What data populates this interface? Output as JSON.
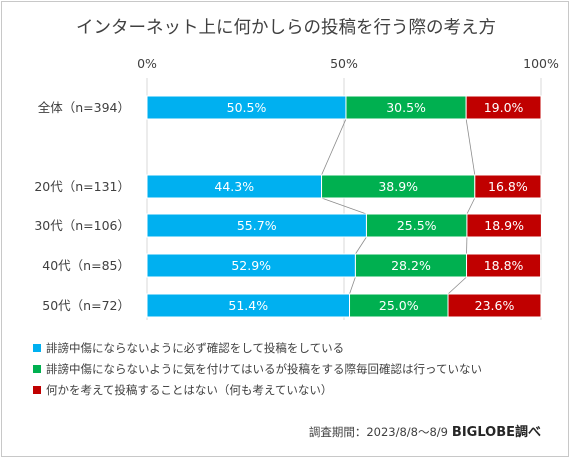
{
  "chart_data": {
    "type": "bar",
    "stacked": true,
    "orientation": "horizontal",
    "title": "インターネット上に何かしらの投稿を行う際の考え方",
    "categories": [
      "全体（n=394）",
      "20代（n=131）",
      "30代（n=106）",
      "40代（n=85）",
      "50代（n=72）"
    ],
    "series": [
      {
        "name": "誹謗中傷にならないように必ず確認をして投稿をしている",
        "color": "#00b0f0",
        "values": [
          50.5,
          44.3,
          55.7,
          52.9,
          51.4
        ],
        "labels": [
          "50.5%",
          "44.3%",
          "55.7%",
          "52.9%",
          "51.4%"
        ]
      },
      {
        "name": "誹謗中傷にならないように気を付けてはいるが投稿をする際毎回確認は行っていない",
        "color": "#00b050",
        "values": [
          30.5,
          38.9,
          25.5,
          28.2,
          25.0
        ],
        "labels": [
          "30.5%",
          "38.9%",
          "25.5%",
          "28.2%",
          "25.0%"
        ]
      },
      {
        "name": "何かを考えて投稿することはない（何も考えていない）",
        "color": "#c00000",
        "values": [
          19.0,
          16.8,
          18.9,
          18.8,
          23.6
        ],
        "labels": [
          "19.0%",
          "16.8%",
          "18.9%",
          "18.8%",
          "23.6%"
        ]
      }
    ],
    "xlim": [
      0,
      100
    ],
    "xticks": [
      0,
      50,
      100
    ],
    "xtick_labels": [
      "0%",
      "50%",
      "100%"
    ],
    "grid": true,
    "legend": "bottom",
    "series_lines": true
  },
  "footer": {
    "period": "調査期間：2023/8/8～8/9",
    "source": "BIGLOBE調べ"
  }
}
